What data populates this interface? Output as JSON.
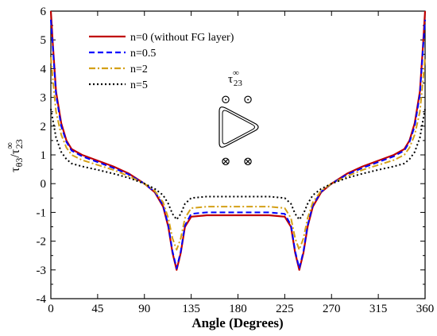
{
  "chart_data": {
    "type": "line",
    "xlabel": "Angle (Degrees)",
    "ylabel": {
      "main": "τ",
      "main_sub": "θ3",
      "sep": "/",
      "den": "τ",
      "den_sub": "23",
      "den_sup": "∞"
    },
    "xlim": [
      0,
      360
    ],
    "ylim": [
      -4,
      6
    ],
    "xticks": [
      0,
      45,
      90,
      135,
      180,
      225,
      270,
      315,
      360
    ],
    "yticks": [
      -4,
      -3,
      -2,
      -1,
      0,
      1,
      2,
      3,
      4,
      5,
      6
    ],
    "grid": false,
    "legend_position": "top-left",
    "inset": {
      "label_main": "τ",
      "label_sub": "23",
      "label_sup": "∞",
      "top_symbol": "⊙",
      "bottom_symbol": "⊗"
    },
    "series": [
      {
        "name": "n=0 (without FG layer)",
        "color": "#c00000",
        "dash": "solid",
        "points": [
          [
            0,
            6
          ],
          [
            2,
            4.8
          ],
          [
            5,
            3.2
          ],
          [
            10,
            2.1
          ],
          [
            15,
            1.5
          ],
          [
            20,
            1.2
          ],
          [
            30,
            1.0
          ],
          [
            45,
            0.8
          ],
          [
            60,
            0.6
          ],
          [
            75,
            0.35
          ],
          [
            90,
            0.0
          ],
          [
            100,
            -0.3
          ],
          [
            108,
            -0.8
          ],
          [
            113,
            -1.5
          ],
          [
            117,
            -2.4
          ],
          [
            121,
            -3.0
          ],
          [
            125,
            -2.4
          ],
          [
            129,
            -1.5
          ],
          [
            135,
            -1.15
          ],
          [
            150,
            -1.1
          ],
          [
            180,
            -1.1
          ],
          [
            210,
            -1.1
          ],
          [
            225,
            -1.15
          ],
          [
            231,
            -1.5
          ],
          [
            235,
            -2.4
          ],
          [
            239,
            -3.0
          ],
          [
            243,
            -2.4
          ],
          [
            247,
            -1.5
          ],
          [
            252,
            -0.8
          ],
          [
            260,
            -0.3
          ],
          [
            270,
            0.0
          ],
          [
            285,
            0.35
          ],
          [
            300,
            0.6
          ],
          [
            315,
            0.8
          ],
          [
            330,
            1.0
          ],
          [
            340,
            1.2
          ],
          [
            345,
            1.5
          ],
          [
            350,
            2.1
          ],
          [
            355,
            3.2
          ],
          [
            358,
            4.8
          ],
          [
            360,
            6
          ]
        ]
      },
      {
        "name": "n=0.5",
        "color": "#0000ff",
        "dash": "dashed",
        "points": [
          [
            0,
            5.7
          ],
          [
            2,
            4.7
          ],
          [
            5,
            3.1
          ],
          [
            10,
            2.0
          ],
          [
            15,
            1.45
          ],
          [
            20,
            1.15
          ],
          [
            30,
            0.95
          ],
          [
            45,
            0.75
          ],
          [
            60,
            0.55
          ],
          [
            75,
            0.32
          ],
          [
            90,
            0.0
          ],
          [
            100,
            -0.28
          ],
          [
            108,
            -0.75
          ],
          [
            113,
            -1.45
          ],
          [
            117,
            -2.35
          ],
          [
            121,
            -2.95
          ],
          [
            125,
            -2.35
          ],
          [
            129,
            -1.45
          ],
          [
            135,
            -1.05
          ],
          [
            150,
            -1.0
          ],
          [
            180,
            -1.0
          ],
          [
            210,
            -1.0
          ],
          [
            225,
            -1.05
          ],
          [
            231,
            -1.45
          ],
          [
            235,
            -2.35
          ],
          [
            239,
            -2.95
          ],
          [
            243,
            -2.35
          ],
          [
            247,
            -1.45
          ],
          [
            252,
            -0.75
          ],
          [
            260,
            -0.28
          ],
          [
            270,
            0.0
          ],
          [
            285,
            0.32
          ],
          [
            300,
            0.55
          ],
          [
            315,
            0.75
          ],
          [
            330,
            0.95
          ],
          [
            340,
            1.15
          ],
          [
            345,
            1.45
          ],
          [
            350,
            2.0
          ],
          [
            355,
            3.1
          ],
          [
            358,
            4.7
          ],
          [
            360,
            5.7
          ]
        ]
      },
      {
        "name": "n=2",
        "color": "#d4a017",
        "dash": "dashdot",
        "points": [
          [
            0,
            4.4
          ],
          [
            2,
            3.6
          ],
          [
            5,
            2.5
          ],
          [
            10,
            1.7
          ],
          [
            15,
            1.25
          ],
          [
            20,
            1.0
          ],
          [
            30,
            0.82
          ],
          [
            45,
            0.65
          ],
          [
            60,
            0.48
          ],
          [
            75,
            0.26
          ],
          [
            90,
            0.0
          ],
          [
            100,
            -0.25
          ],
          [
            108,
            -0.65
          ],
          [
            113,
            -1.2
          ],
          [
            117,
            -1.9
          ],
          [
            121,
            -2.3
          ],
          [
            125,
            -1.9
          ],
          [
            129,
            -1.2
          ],
          [
            135,
            -0.85
          ],
          [
            150,
            -0.8
          ],
          [
            180,
            -0.8
          ],
          [
            210,
            -0.8
          ],
          [
            225,
            -0.85
          ],
          [
            231,
            -1.2
          ],
          [
            235,
            -1.9
          ],
          [
            239,
            -2.3
          ],
          [
            243,
            -1.9
          ],
          [
            247,
            -1.2
          ],
          [
            252,
            -0.65
          ],
          [
            260,
            -0.25
          ],
          [
            270,
            0.0
          ],
          [
            285,
            0.26
          ],
          [
            300,
            0.48
          ],
          [
            315,
            0.65
          ],
          [
            330,
            0.82
          ],
          [
            340,
            1.0
          ],
          [
            345,
            1.25
          ],
          [
            350,
            1.7
          ],
          [
            355,
            2.5
          ],
          [
            358,
            3.6
          ],
          [
            360,
            4.4
          ]
        ]
      },
      {
        "name": "n=5",
        "color": "#000000",
        "dash": "dotted",
        "points": [
          [
            0,
            2.6
          ],
          [
            2,
            2.2
          ],
          [
            5,
            1.6
          ],
          [
            10,
            1.1
          ],
          [
            15,
            0.85
          ],
          [
            20,
            0.7
          ],
          [
            30,
            0.6
          ],
          [
            45,
            0.48
          ],
          [
            60,
            0.35
          ],
          [
            75,
            0.2
          ],
          [
            90,
            0.0
          ],
          [
            100,
            -0.18
          ],
          [
            108,
            -0.4
          ],
          [
            113,
            -0.7
          ],
          [
            117,
            -1.05
          ],
          [
            121,
            -1.25
          ],
          [
            125,
            -1.05
          ],
          [
            129,
            -0.7
          ],
          [
            135,
            -0.5
          ],
          [
            150,
            -0.45
          ],
          [
            180,
            -0.45
          ],
          [
            210,
            -0.45
          ],
          [
            225,
            -0.5
          ],
          [
            231,
            -0.7
          ],
          [
            235,
            -1.05
          ],
          [
            239,
            -1.25
          ],
          [
            243,
            -1.05
          ],
          [
            247,
            -0.7
          ],
          [
            252,
            -0.4
          ],
          [
            260,
            -0.18
          ],
          [
            270,
            0.0
          ],
          [
            285,
            0.2
          ],
          [
            300,
            0.35
          ],
          [
            315,
            0.48
          ],
          [
            330,
            0.6
          ],
          [
            340,
            0.7
          ],
          [
            345,
            0.85
          ],
          [
            350,
            1.1
          ],
          [
            355,
            1.6
          ],
          [
            358,
            2.2
          ],
          [
            360,
            2.6
          ]
        ]
      }
    ]
  }
}
